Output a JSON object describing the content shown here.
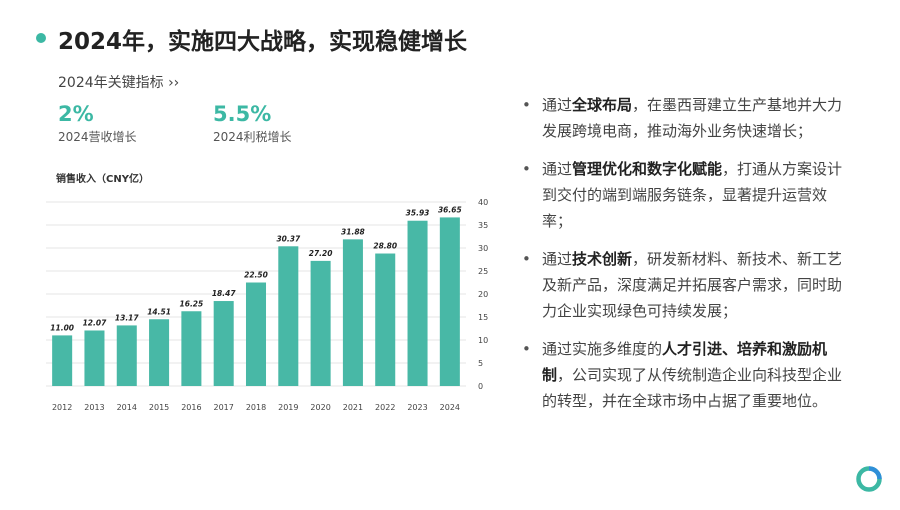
{
  "title": "2024年，实施四大战略，实现稳健增长",
  "kpi": {
    "header": "2024年关键指标 ››",
    "items": [
      {
        "value": "2%",
        "label": "2024营收增长"
      },
      {
        "value": "5.5%",
        "label": "2024利税增长"
      }
    ]
  },
  "bullets": [
    {
      "pre": "通过",
      "bold": "全球布局",
      "post": "，在墨西哥建立生产基地并大力发展跨境电商，推动海外业务快速增长；"
    },
    {
      "pre": "通过",
      "bold": "管理优化和数字化赋能",
      "post": "，打通从方案设计到交付的端到端服务链条，显著提升运营效率；"
    },
    {
      "pre": "通过",
      "bold": "技术创新",
      "post": "，研发新材料、新技术、新工艺及新产品，深度满足并拓展客户需求，同时助力企业实现绿色可持续发展；"
    },
    {
      "pre": "通过实施多维度的",
      "bold": "人才引进、培养和激励机制",
      "post": "，公司实现了从传统制造企业向科技型企业的转型，并在全球市场中占据了重要地位。"
    }
  ],
  "bullet_symbol": "•",
  "colors": {
    "accent": "#3cb8a4",
    "bar": "#48b8a6"
  },
  "chart_data": {
    "type": "bar",
    "title": "销售收入（CNY亿）",
    "categories": [
      "2012",
      "2013",
      "2014",
      "2015",
      "2016",
      "2017",
      "2018",
      "2019",
      "2020",
      "2021",
      "2022",
      "2023",
      "2024"
    ],
    "values": [
      11.0,
      12.07,
      13.17,
      14.51,
      16.25,
      18.47,
      22.5,
      30.37,
      27.2,
      31.88,
      28.8,
      35.93,
      36.65
    ],
    "value_labels": [
      "11.00",
      "12.07",
      "13.17",
      "14.51",
      "16.25",
      "18.47",
      "22.50",
      "30.37",
      "27.20",
      "31.88",
      "28.80",
      "35.93",
      "36.65"
    ],
    "y_ticks": [
      0,
      5,
      10,
      15,
      20,
      25,
      30,
      35,
      40
    ],
    "ylim": [
      0,
      40
    ],
    "grid": true,
    "y_axis_side": "right"
  }
}
